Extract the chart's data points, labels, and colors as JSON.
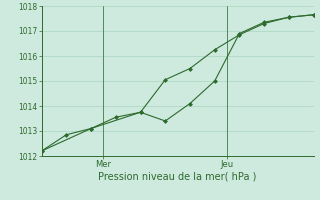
{
  "line1_x": [
    0,
    1,
    2,
    3,
    4,
    5,
    6,
    7,
    8,
    9,
    10,
    11
  ],
  "line1_y": [
    1012.2,
    1012.85,
    1013.1,
    1013.55,
    1013.75,
    1013.4,
    1014.1,
    1015.0,
    1016.9,
    1017.35,
    1017.55,
    1017.65
  ],
  "line2_x": [
    0,
    2,
    4,
    5,
    6,
    7,
    8,
    9,
    10,
    11
  ],
  "line2_y": [
    1012.2,
    1013.1,
    1013.75,
    1015.05,
    1015.5,
    1016.25,
    1016.85,
    1017.3,
    1017.55,
    1017.65
  ],
  "line_color": "#2d6a2d",
  "bg_color": "#ceeade",
  "grid_color": "#b0d8c4",
  "axis_color": "#2d6a2d",
  "tick_color": "#2d6a2d",
  "ylim": [
    1012,
    1018
  ],
  "yticks": [
    1012,
    1013,
    1014,
    1015,
    1016,
    1017,
    1018
  ],
  "xlabel": "Pression niveau de la mer( hPa )",
  "xlabel_color": "#2d6a2d",
  "xtick_labels": [
    "Mer",
    "Jeu"
  ],
  "xtick_positions": [
    2.5,
    7.5
  ],
  "mer_x": 2.5,
  "jeu_x": 7.5,
  "xlim": [
    0,
    11
  ]
}
